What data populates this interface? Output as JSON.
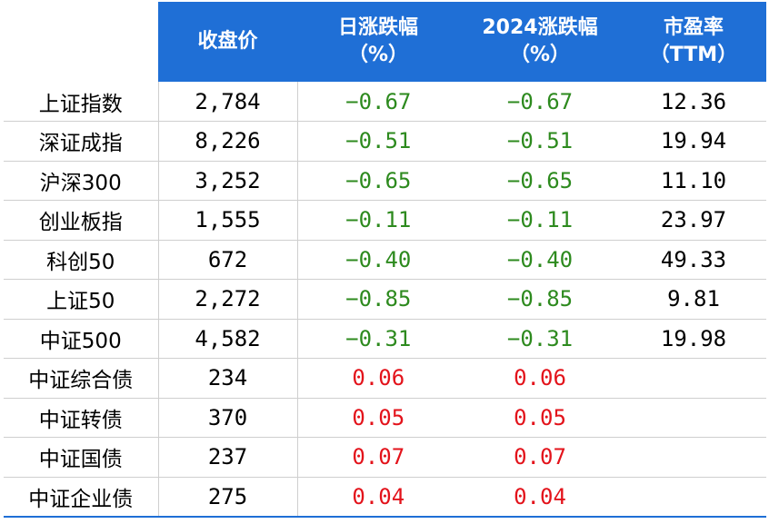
{
  "header": {
    "close": "收盘价",
    "daily": [
      "日涨跌幅",
      "（%）"
    ],
    "ytd": [
      "2024涨跌幅",
      "（%）"
    ],
    "pe": [
      "市盈率",
      "（TTM）"
    ]
  },
  "rows": [
    {
      "name": "上证指数",
      "close": "2,784",
      "daily": "−0.67",
      "ytd": "−0.67",
      "pe": "12.36",
      "sign": "neg"
    },
    {
      "name": "深证成指",
      "close": "8,226",
      "daily": "−0.51",
      "ytd": "−0.51",
      "pe": "19.94",
      "sign": "neg"
    },
    {
      "name": "沪深300",
      "close": "3,252",
      "daily": "−0.65",
      "ytd": "−0.65",
      "pe": "11.10",
      "sign": "neg"
    },
    {
      "name": "创业板指",
      "close": "1,555",
      "daily": "−0.11",
      "ytd": "−0.11",
      "pe": "23.97",
      "sign": "neg"
    },
    {
      "name": "科创50",
      "close": "672",
      "daily": "−0.40",
      "ytd": "−0.40",
      "pe": "49.33",
      "sign": "neg"
    },
    {
      "name": "上证50",
      "close": "2,272",
      "daily": "−0.85",
      "ytd": "−0.85",
      "pe": "9.81",
      "sign": "neg"
    },
    {
      "name": "中证500",
      "close": "4,582",
      "daily": "−0.31",
      "ytd": "−0.31",
      "pe": "19.98",
      "sign": "neg"
    },
    {
      "name": "中证综合债",
      "close": "234",
      "daily": "0.06",
      "ytd": "0.06",
      "pe": "",
      "sign": "pos"
    },
    {
      "name": "中证转债",
      "close": "370",
      "daily": "0.05",
      "ytd": "0.05",
      "pe": "",
      "sign": "pos"
    },
    {
      "name": "中证国债",
      "close": "237",
      "daily": "0.07",
      "ytd": "0.07",
      "pe": "",
      "sign": "pos"
    },
    {
      "name": "中证企业债",
      "close": "275",
      "daily": "0.04",
      "ytd": "0.04",
      "pe": "",
      "sign": "pos"
    }
  ],
  "colors": {
    "header_bg": "#1f6fd6",
    "negative": "#2d8a1e",
    "positive": "#e3131b"
  }
}
